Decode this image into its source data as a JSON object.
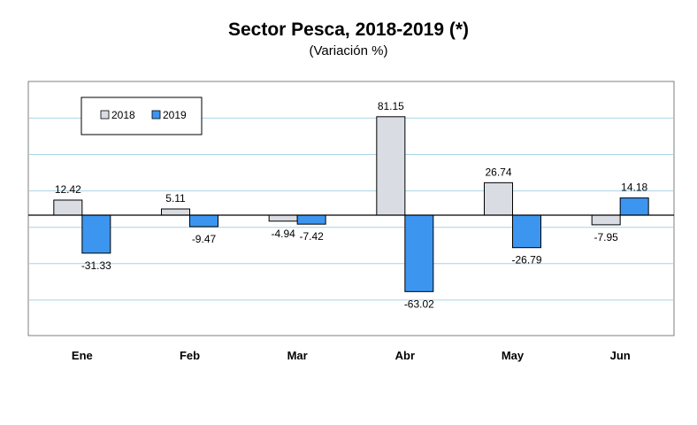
{
  "chart_data": {
    "type": "bar",
    "title": "Sector Pesca, 2018-2019  (*)",
    "subtitle": "(Variación %)",
    "categories": [
      "Ene",
      "Feb",
      "Mar",
      "Abr",
      "May",
      "Jun"
    ],
    "series": [
      {
        "name": "2018",
        "values": [
          12.42,
          5.11,
          -4.94,
          81.15,
          26.74,
          -7.95
        ],
        "labels": [
          "12.42",
          "5.11",
          "-4.94",
          "81.15",
          "26.74",
          "-7.95"
        ],
        "color": "#d9dce3"
      },
      {
        "name": "2019",
        "values": [
          -31.33,
          -9.47,
          -7.42,
          -63.02,
          -26.79,
          14.18
        ],
        "labels": [
          "-31.33",
          "-9.47",
          "-7.42",
          "-63.02",
          "-26.79",
          "14.18"
        ],
        "color": "#3c96f0"
      }
    ],
    "ylim": [
      -100,
      100
    ],
    "y_gridlines": [
      -70,
      -40,
      -10,
      20,
      50,
      80
    ],
    "grid": true,
    "gridline_color": "#a8d4e6",
    "legend": "top-left"
  }
}
